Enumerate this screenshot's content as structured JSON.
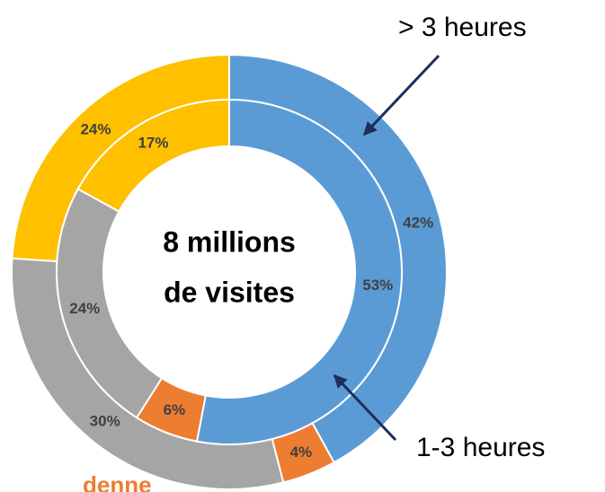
{
  "chart_data": {
    "type": "donut",
    "center_label": [
      "8 millions",
      "de visites"
    ],
    "series": [
      {
        "name": "> 3 heures",
        "ring": "outer",
        "values": [
          42,
          4,
          30,
          24
        ],
        "value_labels": [
          "42%",
          "4%",
          "30%",
          "24%"
        ],
        "colors": [
          "#5b9bd5",
          "#ed7d31",
          "#a5a5a5",
          "#ffc000"
        ]
      },
      {
        "name": "1-3 heures",
        "ring": "inner",
        "values": [
          53,
          6,
          24,
          17
        ],
        "value_labels": [
          "53%",
          "6%",
          "24%",
          "17%"
        ],
        "colors": [
          "#5b9bd5",
          "#ed7d31",
          "#a5a5a5",
          "#ffc000"
        ]
      }
    ],
    "footer": "denne"
  }
}
